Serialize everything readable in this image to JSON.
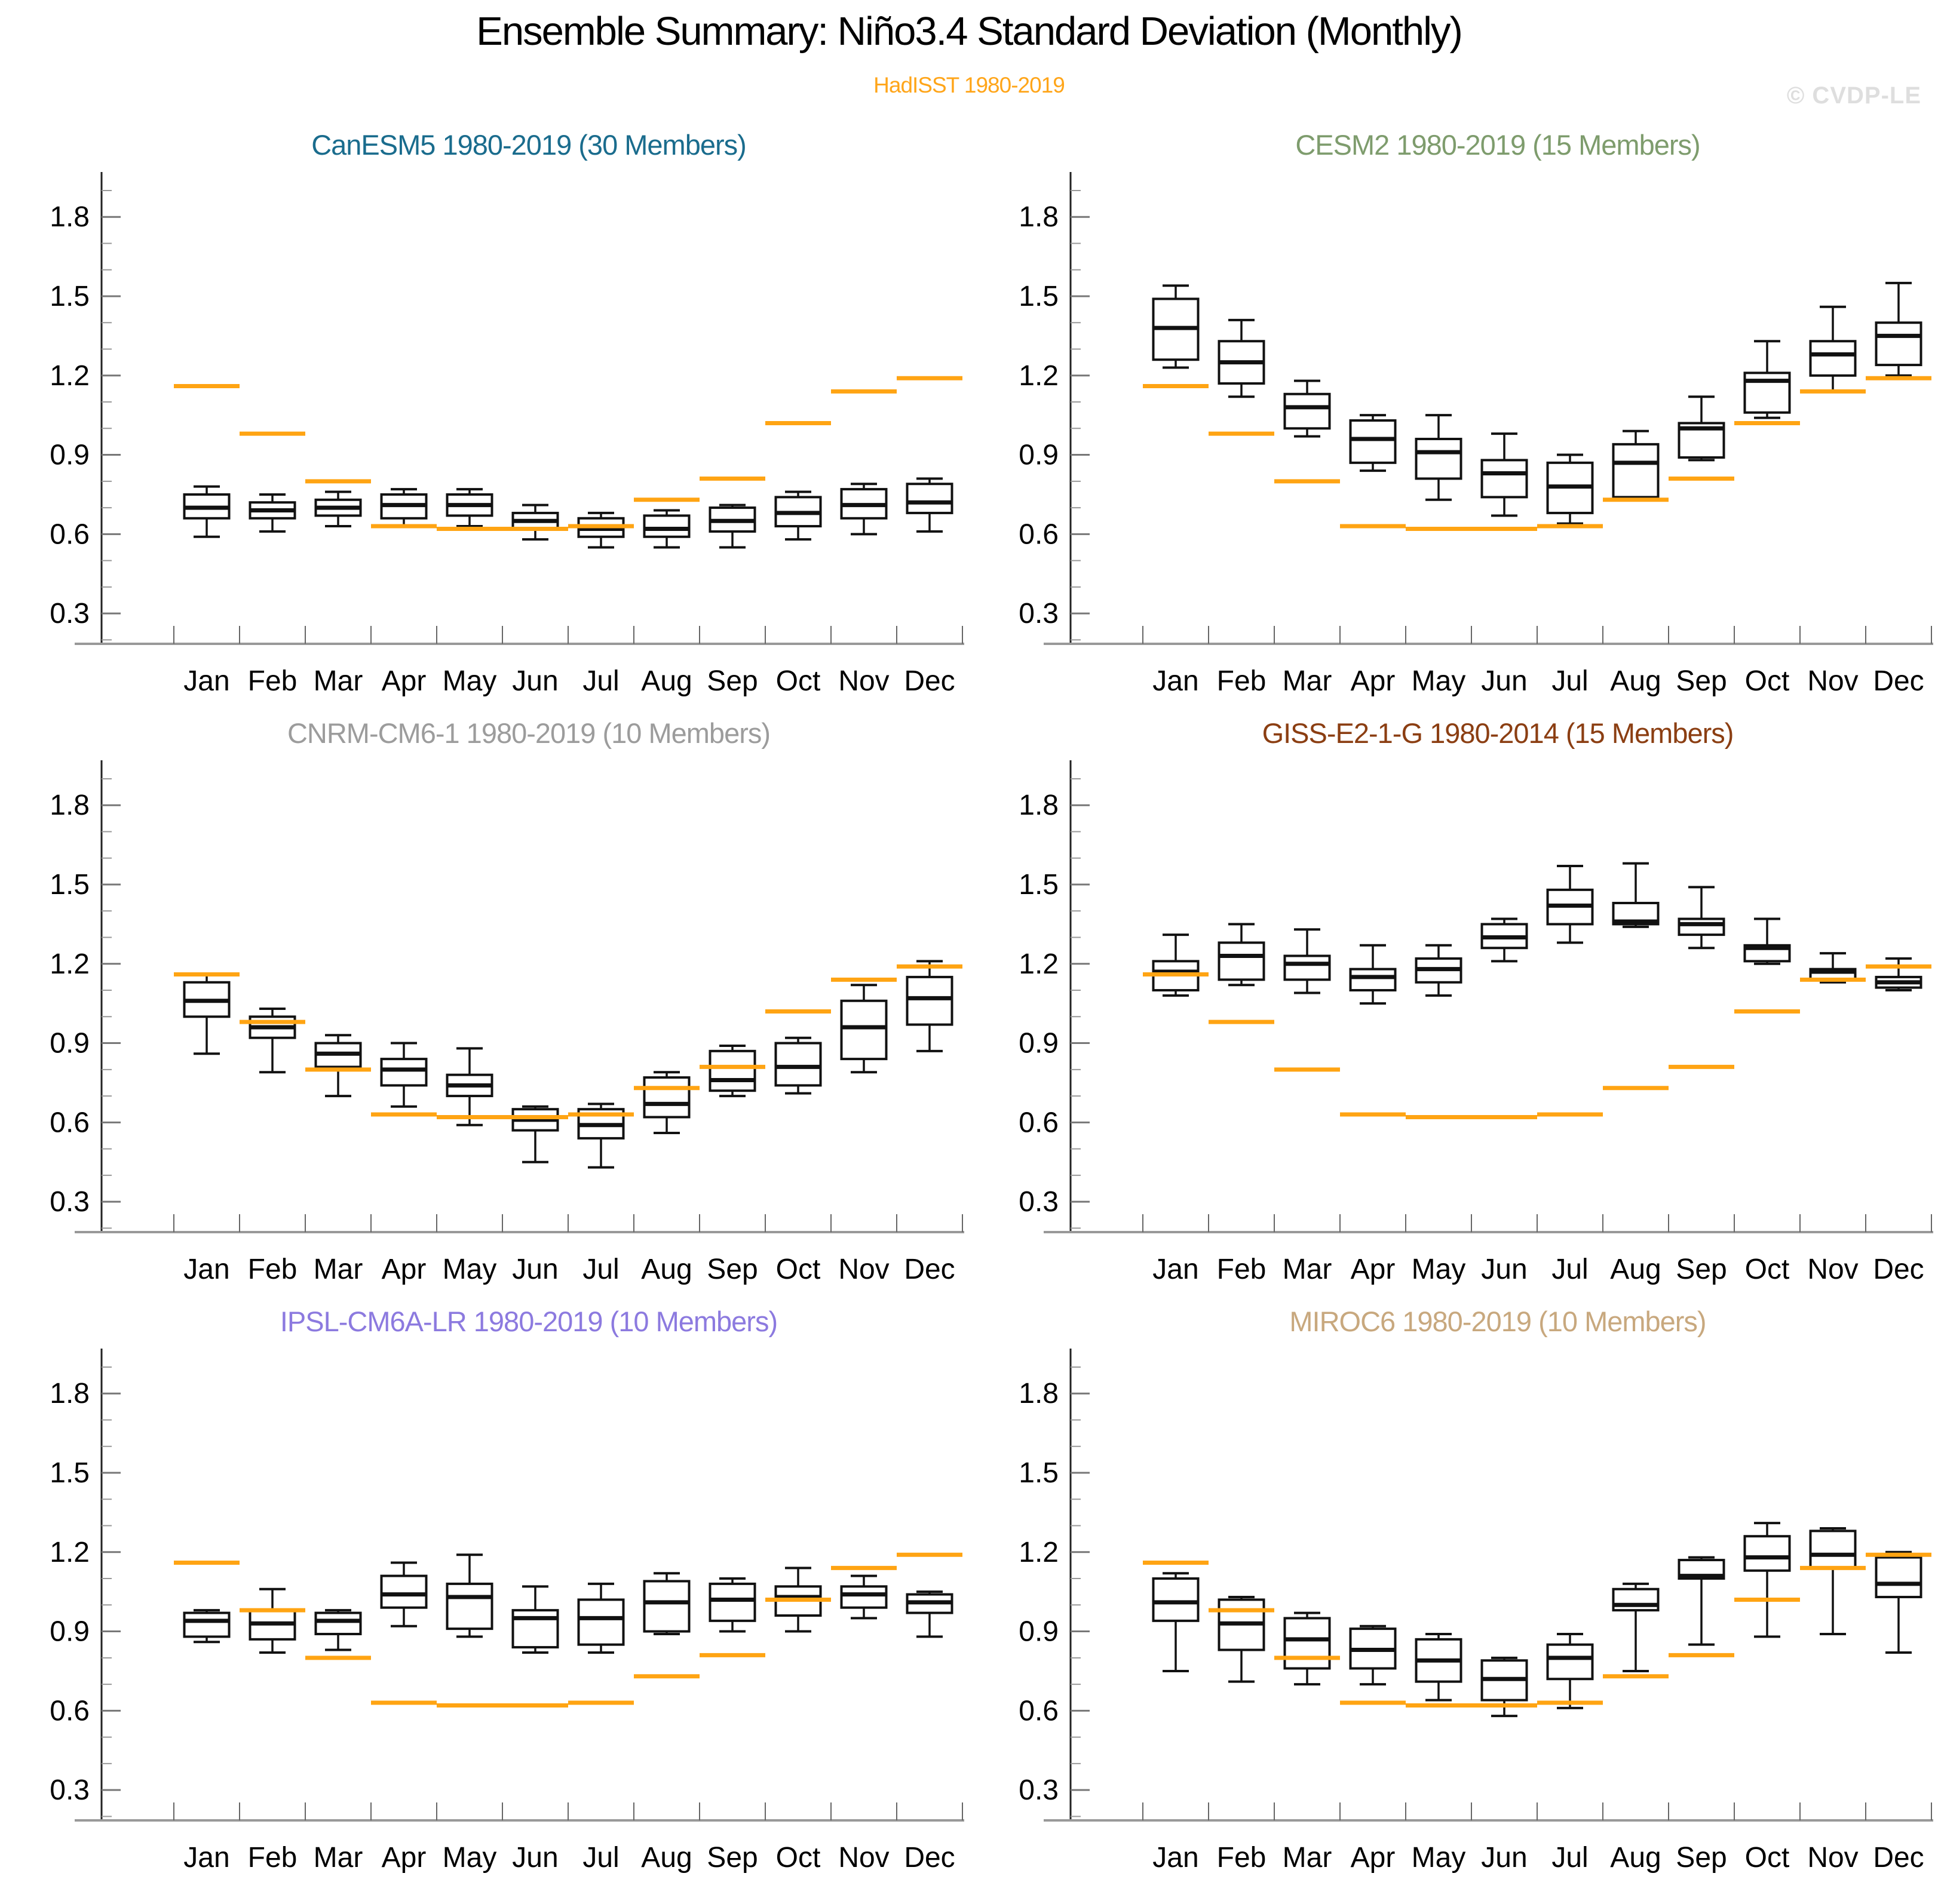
{
  "header": {
    "title": "Ensemble Summary: Niño3.4 Standard Deviation (Monthly)",
    "subtitle": "HadISST 1980-2019",
    "subtitle_color": "#FFA519",
    "watermark": "© CVDP-LE"
  },
  "chart_data": {
    "type": "boxplot",
    "grid": "2 columns x 3 rows",
    "months": [
      "Jan",
      "Feb",
      "Mar",
      "Apr",
      "May",
      "Jun",
      "Jul",
      "Aug",
      "Sep",
      "Oct",
      "Nov",
      "Dec"
    ],
    "y_axis": {
      "ticks": [
        "0.3",
        "0.6",
        "0.9",
        "1.2",
        "1.5",
        "1.8"
      ],
      "minor_step": 0.1,
      "minor_range": [
        0.2,
        1.9
      ],
      "range": [
        0.185,
        1.97
      ]
    },
    "box_format": [
      "whisker_low",
      "q1",
      "median",
      "q3",
      "whisker_high"
    ],
    "observed": {
      "label": "HadISST 1980-2019",
      "color": "#FFA413",
      "values": [
        1.16,
        0.98,
        0.8,
        0.63,
        0.62,
        0.62,
        0.63,
        0.73,
        0.81,
        1.02,
        1.14,
        1.19
      ]
    },
    "panels": [
      {
        "title": "CanESM5 1980-2019 (30 Members)",
        "title_color": "#1A6C8D",
        "boxes": [
          [
            0.59,
            0.66,
            0.7,
            0.75,
            0.78
          ],
          [
            0.61,
            0.66,
            0.69,
            0.72,
            0.75
          ],
          [
            0.63,
            0.67,
            0.7,
            0.73,
            0.76
          ],
          [
            0.63,
            0.66,
            0.71,
            0.75,
            0.77
          ],
          [
            0.63,
            0.67,
            0.71,
            0.75,
            0.77
          ],
          [
            0.58,
            0.62,
            0.65,
            0.68,
            0.71
          ],
          [
            0.55,
            0.59,
            0.62,
            0.66,
            0.68
          ],
          [
            0.55,
            0.59,
            0.62,
            0.67,
            0.69
          ],
          [
            0.55,
            0.61,
            0.65,
            0.7,
            0.71
          ],
          [
            0.58,
            0.63,
            0.68,
            0.74,
            0.76
          ],
          [
            0.6,
            0.66,
            0.71,
            0.77,
            0.79
          ],
          [
            0.61,
            0.68,
            0.72,
            0.79,
            0.81
          ]
        ]
      },
      {
        "title": "CESM2 1980-2019 (15 Members)",
        "title_color": "#7E9C6D",
        "boxes": [
          [
            1.23,
            1.26,
            1.38,
            1.49,
            1.54
          ],
          [
            1.12,
            1.17,
            1.25,
            1.33,
            1.41
          ],
          [
            0.97,
            1.0,
            1.08,
            1.13,
            1.18
          ],
          [
            0.84,
            0.87,
            0.96,
            1.03,
            1.05
          ],
          [
            0.73,
            0.81,
            0.91,
            0.96,
            1.05
          ],
          [
            0.67,
            0.74,
            0.83,
            0.88,
            0.98
          ],
          [
            0.64,
            0.68,
            0.78,
            0.87,
            0.9
          ],
          [
            0.73,
            0.74,
            0.87,
            0.94,
            0.99
          ],
          [
            0.88,
            0.89,
            1.0,
            1.02,
            1.12
          ],
          [
            1.04,
            1.06,
            1.18,
            1.21,
            1.33
          ],
          [
            1.14,
            1.2,
            1.28,
            1.33,
            1.46
          ],
          [
            1.2,
            1.24,
            1.35,
            1.4,
            1.55
          ]
        ]
      },
      {
        "title": "CNRM-CM6-1 1980-2019 (10 Members)",
        "title_color": "#9C9C9C",
        "boxes": [
          [
            0.86,
            1.0,
            1.06,
            1.13,
            1.16
          ],
          [
            0.79,
            0.92,
            0.96,
            1.0,
            1.03
          ],
          [
            0.7,
            0.81,
            0.86,
            0.9,
            0.93
          ],
          [
            0.66,
            0.74,
            0.8,
            0.84,
            0.9
          ],
          [
            0.59,
            0.7,
            0.74,
            0.78,
            0.88
          ],
          [
            0.45,
            0.57,
            0.61,
            0.65,
            0.66
          ],
          [
            0.43,
            0.54,
            0.59,
            0.65,
            0.67
          ],
          [
            0.56,
            0.62,
            0.67,
            0.77,
            0.79
          ],
          [
            0.7,
            0.72,
            0.76,
            0.87,
            0.89
          ],
          [
            0.71,
            0.74,
            0.81,
            0.9,
            0.92
          ],
          [
            0.79,
            0.84,
            0.96,
            1.06,
            1.12
          ],
          [
            0.87,
            0.97,
            1.07,
            1.15,
            1.21
          ]
        ]
      },
      {
        "title": "GISS-E2-1-G 1980-2014 (15 Members)",
        "title_color": "#8B3E12",
        "boxes": [
          [
            1.08,
            1.1,
            1.17,
            1.21,
            1.31
          ],
          [
            1.12,
            1.14,
            1.23,
            1.28,
            1.35
          ],
          [
            1.09,
            1.14,
            1.2,
            1.23,
            1.33
          ],
          [
            1.05,
            1.1,
            1.15,
            1.18,
            1.27
          ],
          [
            1.08,
            1.13,
            1.18,
            1.22,
            1.27
          ],
          [
            1.21,
            1.26,
            1.3,
            1.35,
            1.37
          ],
          [
            1.28,
            1.35,
            1.42,
            1.48,
            1.57
          ],
          [
            1.34,
            1.35,
            1.36,
            1.43,
            1.58
          ],
          [
            1.26,
            1.31,
            1.35,
            1.37,
            1.49
          ],
          [
            1.2,
            1.21,
            1.26,
            1.27,
            1.37
          ],
          [
            1.13,
            1.14,
            1.17,
            1.18,
            1.24
          ],
          [
            1.1,
            1.11,
            1.13,
            1.15,
            1.22
          ]
        ]
      },
      {
        "title": "IPSL-CM6A-LR 1980-2019 (10 Members)",
        "title_color": "#8C7ADF",
        "boxes": [
          [
            0.86,
            0.88,
            0.94,
            0.97,
            0.98
          ],
          [
            0.82,
            0.87,
            0.93,
            0.98,
            1.06
          ],
          [
            0.83,
            0.89,
            0.94,
            0.97,
            0.98
          ],
          [
            0.92,
            0.99,
            1.04,
            1.11,
            1.16
          ],
          [
            0.88,
            0.91,
            1.03,
            1.08,
            1.19
          ],
          [
            0.82,
            0.84,
            0.95,
            0.98,
            1.07
          ],
          [
            0.82,
            0.85,
            0.95,
            1.02,
            1.08
          ],
          [
            0.89,
            0.9,
            1.01,
            1.09,
            1.12
          ],
          [
            0.9,
            0.94,
            1.02,
            1.08,
            1.1
          ],
          [
            0.9,
            0.96,
            1.03,
            1.07,
            1.14
          ],
          [
            0.95,
            0.99,
            1.04,
            1.07,
            1.11
          ],
          [
            0.88,
            0.97,
            1.01,
            1.04,
            1.05
          ]
        ]
      },
      {
        "title": "MIROC6 1980-2019 (10 Members)",
        "title_color": "#C8A87E",
        "boxes": [
          [
            0.75,
            0.94,
            1.01,
            1.1,
            1.12
          ],
          [
            0.71,
            0.83,
            0.93,
            1.02,
            1.03
          ],
          [
            0.7,
            0.76,
            0.87,
            0.95,
            0.97
          ],
          [
            0.7,
            0.76,
            0.83,
            0.91,
            0.92
          ],
          [
            0.64,
            0.71,
            0.79,
            0.87,
            0.89
          ],
          [
            0.58,
            0.64,
            0.72,
            0.79,
            0.8
          ],
          [
            0.61,
            0.72,
            0.8,
            0.85,
            0.89
          ],
          [
            0.75,
            0.98,
            1.0,
            1.06,
            1.08
          ],
          [
            0.85,
            1.1,
            1.11,
            1.17,
            1.18
          ],
          [
            0.88,
            1.13,
            1.18,
            1.26,
            1.31
          ],
          [
            0.89,
            1.14,
            1.19,
            1.28,
            1.29
          ],
          [
            0.82,
            1.03,
            1.08,
            1.18,
            1.2
          ]
        ]
      }
    ]
  },
  "style_colors": {
    "box_stroke": "#111111",
    "axis_spine_left": "#222222",
    "axis_spine_bottom": "#999999",
    "major_tick": "#777777",
    "minor_tick": "#999999",
    "text": "#000000"
  }
}
